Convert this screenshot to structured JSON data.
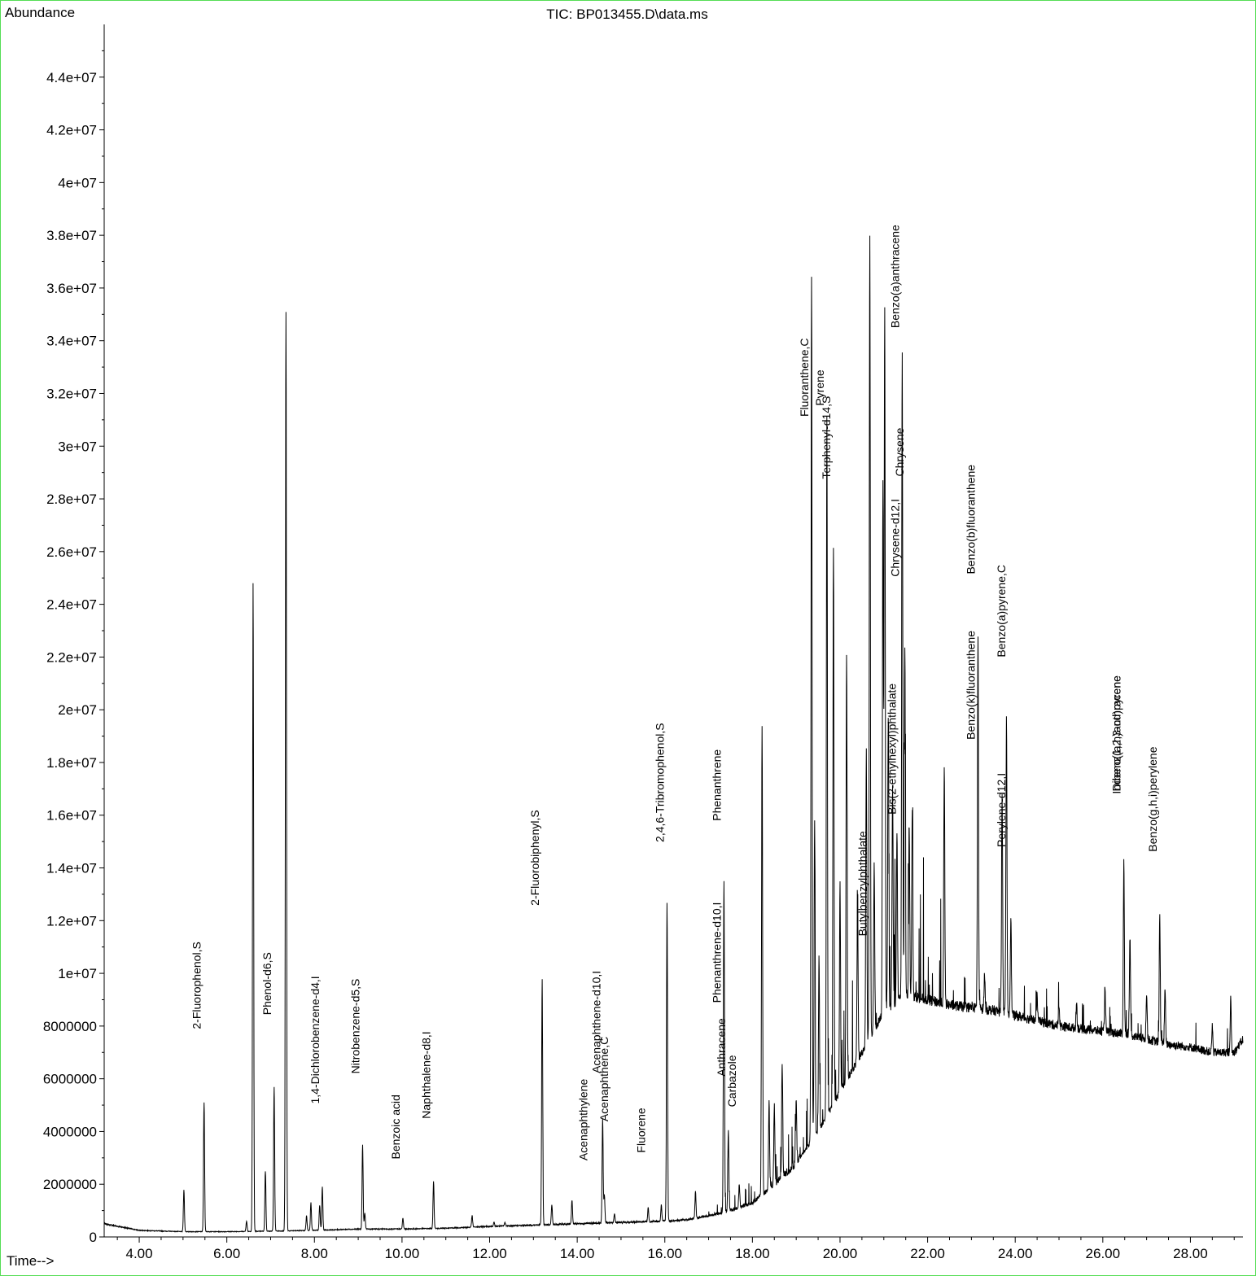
{
  "chart_data": {
    "type": "line",
    "title": "TIC: BP013455.D\\data.ms",
    "ylabel": "Abundance",
    "xlabel": "Time-->",
    "xlim": [
      3.2,
      29.2
    ],
    "ylim": [
      0,
      46000000
    ],
    "x_ticks": [
      4,
      6,
      8,
      10,
      12,
      14,
      16,
      18,
      20,
      22,
      24,
      26,
      28
    ],
    "x_tick_labels": [
      "4.00",
      "6.00",
      "8.00",
      "10.00",
      "12.00",
      "14.00",
      "16.00",
      "18.00",
      "20.00",
      "22.00",
      "24.00",
      "26.00",
      "28.00"
    ],
    "y_ticks": [
      0,
      2000000,
      4000000,
      6000000,
      8000000,
      10000000,
      12000000,
      14000000,
      16000000,
      18000000,
      20000000,
      22000000,
      24000000,
      26000000,
      28000000,
      30000000,
      32000000,
      34000000,
      36000000,
      38000000,
      40000000,
      42000000,
      44000000
    ],
    "y_tick_labels": [
      "0",
      "2000000",
      "4000000",
      "6000000",
      "8000000",
      "1e+07",
      "1.2e+07",
      "1.4e+07",
      "1.6e+07",
      "1.8e+07",
      "2e+07",
      "2.2e+07",
      "2.4e+07",
      "2.6e+07",
      "2.8e+07",
      "3e+07",
      "3.2e+07",
      "3.4e+07",
      "3.6e+07",
      "3.8e+07",
      "4e+07",
      "4.2e+07",
      "4.4e+07"
    ],
    "grid": false,
    "line_color": "#000000",
    "baseline": [
      [
        3.2,
        500000
      ],
      [
        4,
        250000
      ],
      [
        5,
        200000
      ],
      [
        6,
        200000
      ],
      [
        7,
        220000
      ],
      [
        8,
        250000
      ],
      [
        9,
        300000
      ],
      [
        10,
        300000
      ],
      [
        11,
        330000
      ],
      [
        12,
        400000
      ],
      [
        13,
        450000
      ],
      [
        14,
        500000
      ],
      [
        15,
        550000
      ],
      [
        16,
        600000
      ],
      [
        16.5,
        650000
      ],
      [
        17,
        800000
      ],
      [
        17.5,
        1000000
      ],
      [
        18,
        1300000
      ],
      [
        18.5,
        2000000
      ],
      [
        19,
        2800000
      ],
      [
        19.5,
        4000000
      ],
      [
        20,
        5500000
      ],
      [
        20.5,
        7000000
      ],
      [
        21,
        8500000
      ],
      [
        21.5,
        9200000
      ],
      [
        22,
        9000000
      ],
      [
        22.5,
        8800000
      ],
      [
        23,
        8700000
      ],
      [
        23.5,
        8600000
      ],
      [
        24,
        8400000
      ],
      [
        24.5,
        8200000
      ],
      [
        25,
        8000000
      ],
      [
        25.5,
        7900000
      ],
      [
        26,
        7800000
      ],
      [
        26.5,
        7700000
      ],
      [
        27,
        7500000
      ],
      [
        27.5,
        7300000
      ],
      [
        28,
        7200000
      ],
      [
        28.5,
        7000000
      ],
      [
        29,
        7000000
      ],
      [
        29.2,
        7500000
      ]
    ],
    "peaks": [
      [
        5.02,
        1800000
      ],
      [
        5.48,
        5100000
      ],
      [
        6.45,
        600000
      ],
      [
        6.6,
        24800000
      ],
      [
        6.88,
        2500000
      ],
      [
        7.08,
        5700000
      ],
      [
        7.35,
        35100000
      ],
      [
        7.82,
        800000
      ],
      [
        7.92,
        1300000
      ],
      [
        8.12,
        1200000
      ],
      [
        8.18,
        1900000
      ],
      [
        9.1,
        3500000
      ],
      [
        9.15,
        900000
      ],
      [
        10.02,
        700000
      ],
      [
        10.72,
        2100000
      ],
      [
        11.6,
        800000
      ],
      [
        12.1,
        550000
      ],
      [
        12.35,
        550000
      ],
      [
        13.2,
        9800000
      ],
      [
        13.42,
        1200000
      ],
      [
        13.88,
        1400000
      ],
      [
        14.58,
        4500000
      ],
      [
        14.62,
        1600000
      ],
      [
        14.85,
        900000
      ],
      [
        15.62,
        1100000
      ],
      [
        15.92,
        1200000
      ],
      [
        16.05,
        12700000
      ],
      [
        16.7,
        1700000
      ],
      [
        17.35,
        13500000
      ],
      [
        17.45,
        4000000
      ],
      [
        17.7,
        2000000
      ],
      [
        18.22,
        19300000
      ],
      [
        18.38,
        5100000
      ],
      [
        18.5,
        5000000
      ],
      [
        18.68,
        6600000
      ],
      [
        19.0,
        5200000
      ],
      [
        19.35,
        36400000
      ],
      [
        19.42,
        15800000
      ],
      [
        19.52,
        10600000
      ],
      [
        19.7,
        31100000
      ],
      [
        19.85,
        26100000
      ],
      [
        20.0,
        13400000
      ],
      [
        20.15,
        22100000
      ],
      [
        20.4,
        12800000
      ],
      [
        20.6,
        18400000
      ],
      [
        20.68,
        38100000
      ],
      [
        20.78,
        14200000
      ],
      [
        20.98,
        28600000
      ],
      [
        21.02,
        35300000
      ],
      [
        21.1,
        19500000
      ],
      [
        21.2,
        17100000
      ],
      [
        21.3,
        15400000
      ],
      [
        21.42,
        33600000
      ],
      [
        21.48,
        22300000
      ],
      [
        21.58,
        15500000
      ],
      [
        21.65,
        16200000
      ],
      [
        22.38,
        17800000
      ],
      [
        23.15,
        22800000
      ],
      [
        23.3,
        10000000
      ],
      [
        23.7,
        17000000
      ],
      [
        23.8,
        19600000
      ],
      [
        23.9,
        12200000
      ],
      [
        24.5,
        9200000
      ],
      [
        25.0,
        8800000
      ],
      [
        25.4,
        8900000
      ],
      [
        26.05,
        9500000
      ],
      [
        26.48,
        14200000
      ],
      [
        26.62,
        11400000
      ],
      [
        27.0,
        9300000
      ],
      [
        27.3,
        12200000
      ],
      [
        27.42,
        9400000
      ],
      [
        28.5,
        8000000
      ],
      [
        28.92,
        9000000
      ]
    ],
    "annotations": [
      {
        "label": "2-Fluorophenol,S",
        "time": 5.48,
        "top_abundance": 11200000
      },
      {
        "label": "Phenol-d6,S",
        "time": 7.08,
        "top_abundance": 10800000
      },
      {
        "label": "1,4-Dichlorobenzene-d4,I",
        "time": 8.18,
        "top_abundance": 9900000
      },
      {
        "label": "Nitrobenzene-d5,S",
        "time": 9.1,
        "top_abundance": 9800000
      },
      {
        "label": "Benzoic acid",
        "time": 10.02,
        "top_abundance": 5400000
      },
      {
        "label": "Naphthalene-d8,I",
        "time": 10.72,
        "top_abundance": 7800000
      },
      {
        "label": "2-Fluorobiphenyl,S",
        "time": 13.2,
        "top_abundance": 16200000
      },
      {
        "label": "Acenaphthylene",
        "time": 14.3,
        "top_abundance": 6000000
      },
      {
        "label": "Acenaphthene-d10,I",
        "time": 14.6,
        "top_abundance": 10100000
      },
      {
        "label": "Acenaphthene,C",
        "time": 14.78,
        "top_abundance": 7600000
      },
      {
        "label": "Fluorene",
        "time": 15.62,
        "top_abundance": 4900000
      },
      {
        "label": "2,4,6-Tribromophenol,S",
        "time": 16.05,
        "top_abundance": 19500000
      },
      {
        "label": "Phenanthrene",
        "time": 17.35,
        "top_abundance": 18500000
      },
      {
        "label": "Phenanthrene-d10,I",
        "time": 17.35,
        "top_abundance": 12700000
      },
      {
        "label": "Anthracene",
        "time": 17.45,
        "top_abundance": 8300000
      },
      {
        "label": "Carbazole",
        "time": 17.7,
        "top_abundance": 6900000
      },
      {
        "label": "Fluoranthene,C",
        "time": 19.35,
        "top_abundance": 34100000
      },
      {
        "label": "Pyrene",
        "time": 19.7,
        "top_abundance": 32900000
      },
      {
        "label": "Terphenyl-d14,S",
        "time": 19.85,
        "top_abundance": 31900000
      },
      {
        "label": "Butylbenzylphthalate",
        "time": 20.68,
        "top_abundance": 15400000
      },
      {
        "label": "Benzo(a)anthracene",
        "time": 21.42,
        "top_abundance": 38400000
      },
      {
        "label": "Chrysene-d12,I",
        "time": 21.42,
        "top_abundance": 28000000
      },
      {
        "label": "Chrysene",
        "time": 21.52,
        "top_abundance": 30700000
      },
      {
        "label": "Bis(2-ethylhexyl)phthalate",
        "time": 21.35,
        "top_abundance": 21000000
      },
      {
        "label": "Benzo(b)fluoranthene",
        "time": 23.15,
        "top_abundance": 29300000
      },
      {
        "label": "Benzo(k)fluoranthene",
        "time": 23.15,
        "top_abundance": 23000000
      },
      {
        "label": "Benzo(a)pyrene,C",
        "time": 23.85,
        "top_abundance": 25500000
      },
      {
        "label": "Perylene-d12,I",
        "time": 23.85,
        "top_abundance": 17600000
      },
      {
        "label": "Indeno(1,2,3-cd)pyrene",
        "time": 26.48,
        "top_abundance": 21300000
      },
      {
        "label": "Dibenz(a,h)anthracene",
        "time": 26.48,
        "top_abundance": 21300000
      },
      {
        "label": "Benzo(g,h,i)perylene",
        "time": 27.3,
        "top_abundance": 18600000
      }
    ]
  }
}
